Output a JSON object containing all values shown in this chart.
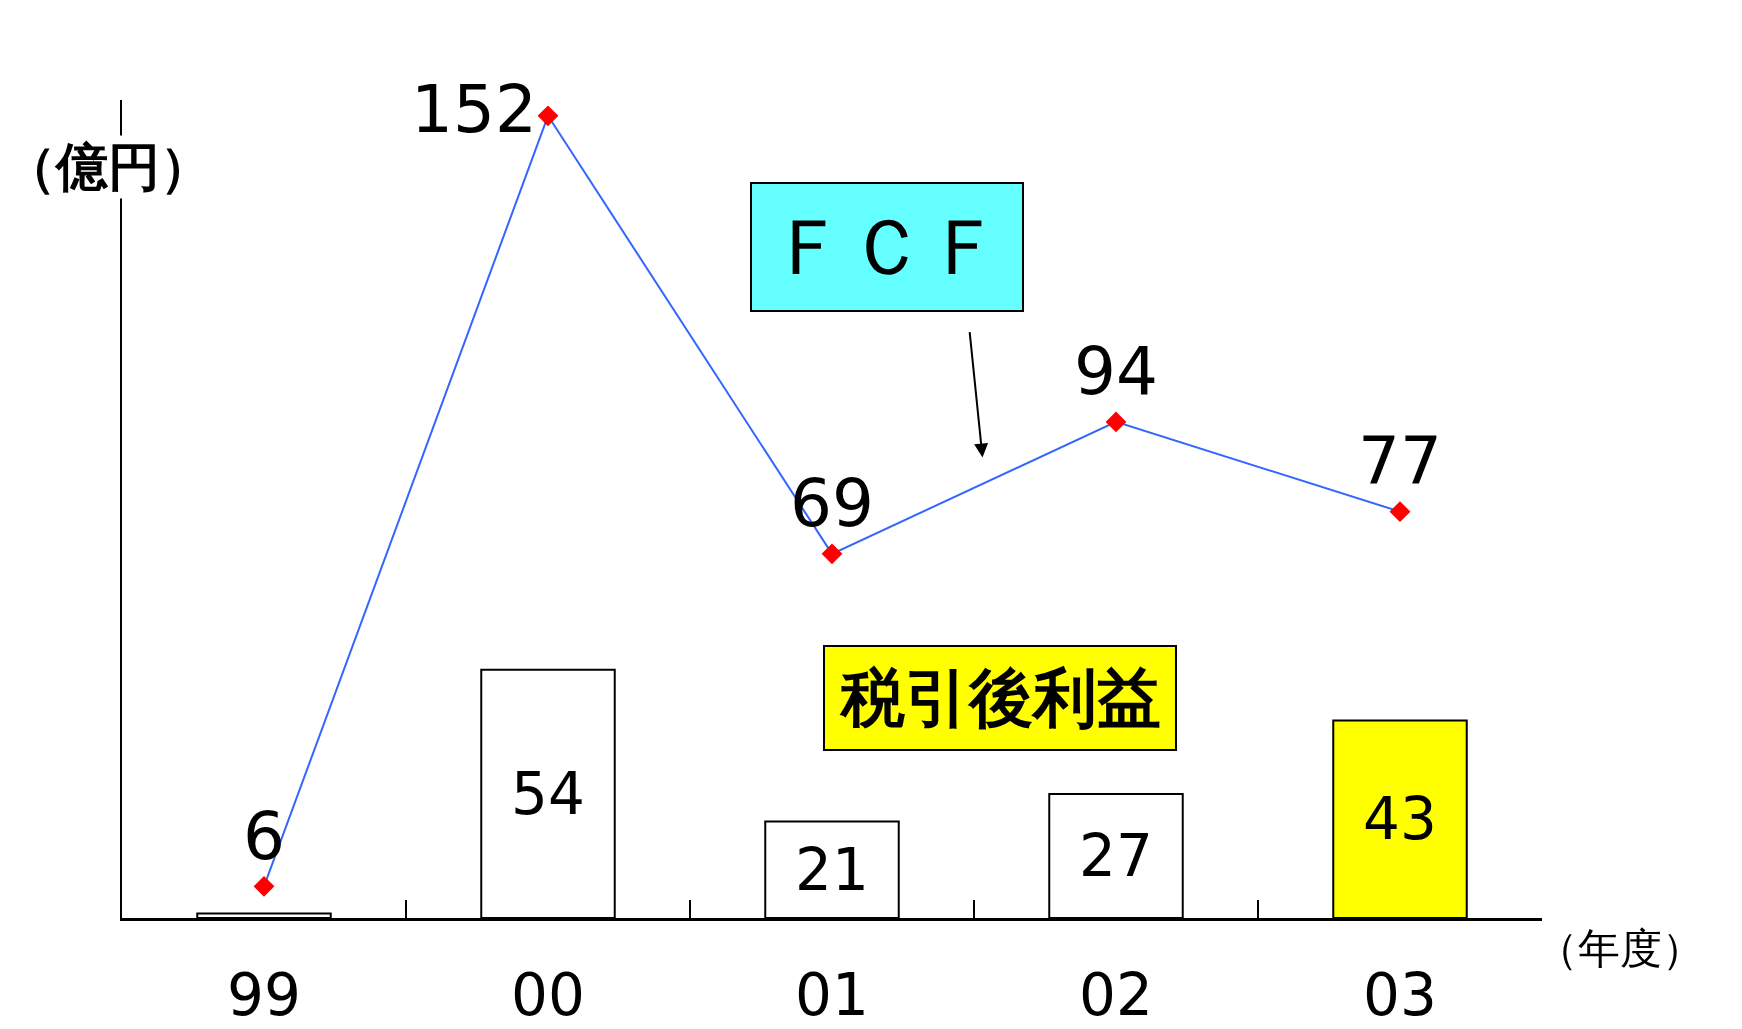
{
  "chart_data": {
    "type": "bar",
    "categories": [
      "99",
      "00",
      "01",
      "02",
      "03"
    ],
    "xlabel": "（年度）",
    "ylabel": "（億円）",
    "ylim": [
      0,
      178
    ],
    "y2lim": [
      0,
      155
    ],
    "tick_labels": "x",
    "series": [
      {
        "name": "税引後利益",
        "colors": [
          "#ffffff",
          "#ffffff",
          "#ffffff",
          "#ffffff",
          "#ffff00"
        ],
        "values": [
          1,
          54,
          21,
          27,
          43
        ],
        "value_labels": [
          null,
          "54",
          "21",
          "27",
          "43"
        ]
      },
      {
        "name": "ＦＣＦ",
        "type": "line",
        "axis": "y2",
        "color": "#3366ff",
        "colors": [
          "#ff0000",
          "#ff0000",
          "#ff0000",
          "#ff0000",
          "#ff0000"
        ],
        "marker": "diamond",
        "values": [
          6,
          152,
          69,
          94,
          77
        ],
        "value_labels": [
          "6",
          "152",
          "69",
          "94",
          "77"
        ]
      }
    ]
  }
}
